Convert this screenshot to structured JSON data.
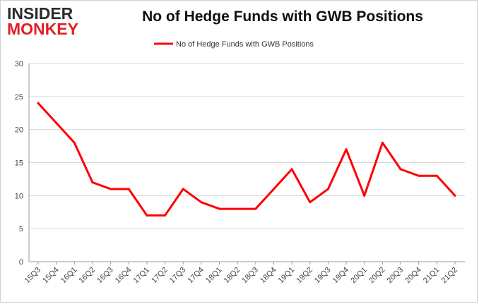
{
  "logo": {
    "line1": "INSIDER",
    "line2": "MONKEY"
  },
  "colors": {
    "series": "#ff0000",
    "grid": "#d9d9d9",
    "axis": "#999999",
    "logo_accent": "#e31e24"
  },
  "chart_data": {
    "type": "line",
    "title": "No of Hedge Funds with GWB Positions",
    "xlabel": "",
    "ylabel": "",
    "ylim": [
      0,
      30
    ],
    "yticks": [
      0,
      5,
      10,
      15,
      20,
      25,
      30
    ],
    "grid": true,
    "legend": "top-center",
    "categories": [
      "15Q3",
      "15Q4",
      "16Q1",
      "16Q2",
      "16Q3",
      "16Q4",
      "17Q1",
      "17Q2",
      "17Q3",
      "17Q4",
      "18Q1",
      "18Q2",
      "18Q3",
      "18Q4",
      "19Q1",
      "19Q2",
      "19Q3",
      "19Q4",
      "20Q1",
      "20Q2",
      "20Q3",
      "20Q4",
      "21Q1",
      "21Q2"
    ],
    "series": [
      {
        "name": "No of Hedge Funds with GWB Positions",
        "values": [
          24,
          21,
          18,
          12,
          11,
          11,
          7,
          7,
          11,
          9,
          8,
          8,
          8,
          11,
          14,
          9,
          11,
          17,
          10,
          18,
          14,
          13,
          13,
          10
        ]
      }
    ]
  }
}
